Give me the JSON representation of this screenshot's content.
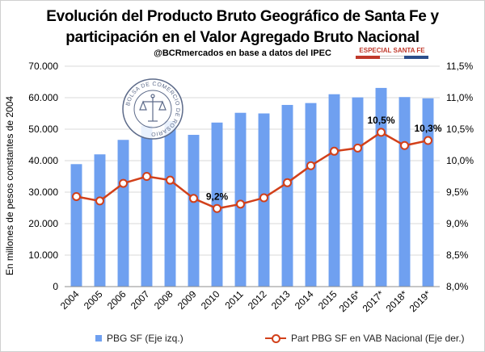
{
  "title_line1": "Evolución del Producto Bruto Geográfico de Santa Fe y",
  "title_line2": "participación en el Valor Agregado Bruto Nacional",
  "subtitle": "@BCRmercados en base a datos del IPEC",
  "badge": "ESPECIAL SANTA FE",
  "logo_text": "BOLSA DE COMERCIO DE ROSARIO",
  "colors": {
    "bar": "#6fa0f0",
    "line": "#d2401a",
    "badge_red": "#c0392b",
    "badge_blue": "#2c4f8c",
    "grid": "#d9d9d9"
  },
  "chart_data": {
    "type": "bar",
    "categories": [
      "2004",
      "2005",
      "2006",
      "2007",
      "2008",
      "2009",
      "2010",
      "2011",
      "2012",
      "2013",
      "2014",
      "2015",
      "2016*",
      "2017*",
      "2018*",
      "2019*"
    ],
    "series": [
      {
        "name": "PBG SF (Eje izq.)",
        "type": "bar",
        "axis": "left",
        "values": [
          38900,
          42000,
          46600,
          51100,
          52600,
          48200,
          52100,
          55200,
          55000,
          57700,
          58300,
          61100,
          60100,
          63100,
          60200,
          59800
        ]
      },
      {
        "name": "Part PBG SF en VAB Nacional (Eje der.)",
        "type": "line",
        "axis": "right",
        "values": [
          9.43,
          9.36,
          9.64,
          9.75,
          9.69,
          9.4,
          9.24,
          9.31,
          9.41,
          9.65,
          9.92,
          10.15,
          10.2,
          10.45,
          10.24,
          10.32
        ]
      }
    ],
    "data_labels": [
      {
        "index": 6,
        "text": "9,2%"
      },
      {
        "index": 13,
        "text": "10,5%"
      },
      {
        "index": 15,
        "text": "10,3%"
      }
    ],
    "ylabel": "En millones de pesos constantes de 2004",
    "ylim_left": [
      0,
      70000
    ],
    "yticks_left": [
      "0",
      "10.000",
      "20.000",
      "30.000",
      "40.000",
      "50.000",
      "60.000",
      "70.000"
    ],
    "ylim_right": [
      8.0,
      11.5
    ],
    "yticks_right": [
      "8,0%",
      "8,5%",
      "9,0%",
      "9,5%",
      "10,0%",
      "10,5%",
      "11,0%",
      "11,5%"
    ],
    "grid": true,
    "legend_position": "bottom"
  }
}
